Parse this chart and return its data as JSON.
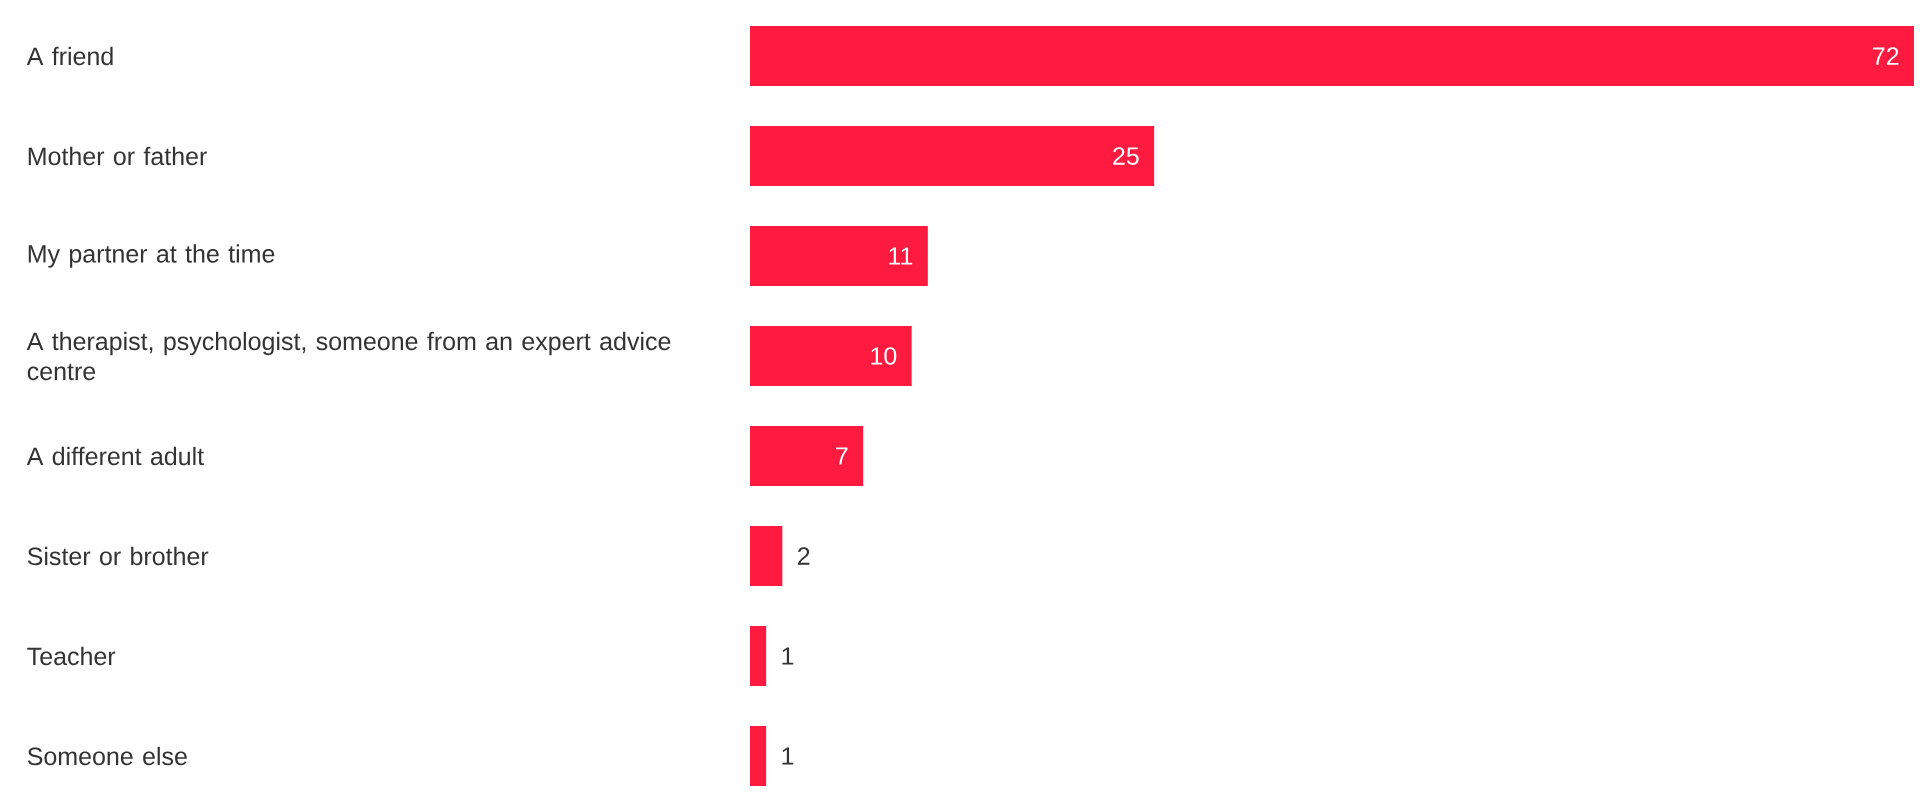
{
  "chart_data": {
    "type": "bar",
    "orientation": "horizontal",
    "data_labels": true,
    "color": "#ff1a40",
    "categories": [
      "A friend",
      "Mother or father",
      "My partner at the time",
      "A therapist, psychologist, someone from an expert advice centre",
      "A different adult",
      "Sister or brother",
      "Teacher",
      "Someone else"
    ],
    "values": [
      72,
      25,
      11,
      10,
      7,
      2,
      1,
      1
    ]
  }
}
